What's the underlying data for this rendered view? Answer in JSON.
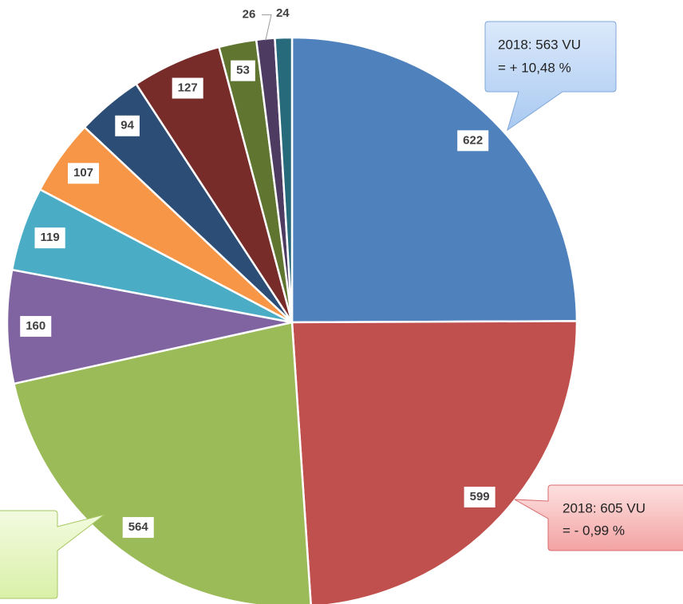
{
  "chart_data": {
    "type": "pie",
    "values": [
      622,
      599,
      564,
      160,
      119,
      107,
      94,
      127,
      53,
      26,
      24
    ],
    "colors": [
      "#4f81bd",
      "#c0504d",
      "#9bbb59",
      "#8064a2",
      "#4bacc6",
      "#f79646",
      "#2c4d75",
      "#772c2a",
      "#5f7530",
      "#4d3b62",
      "#276a7c"
    ],
    "annotations": [
      {
        "lines": [
          "2018: 563 VU",
          "= + 10,48 %"
        ]
      },
      {
        "lines": [
          "2018: 605 VU",
          "= - 0,99 %"
        ]
      }
    ]
  }
}
